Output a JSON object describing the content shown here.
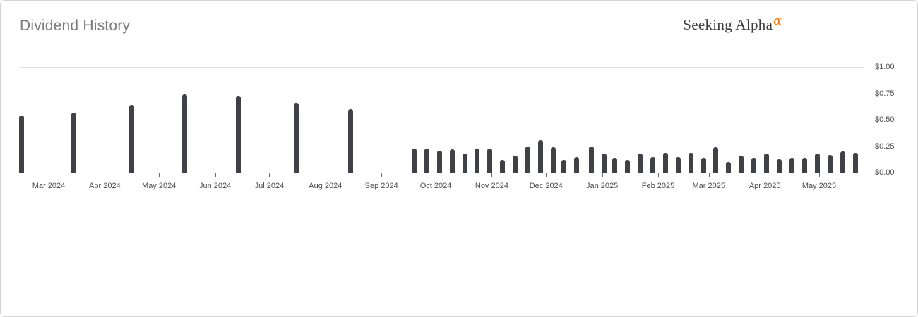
{
  "header": {
    "title": "Dividend History",
    "brand_name": "Seeking Alpha",
    "brand_alpha_symbol": "α"
  },
  "colors": {
    "bar": "#3f4146",
    "gridline": "#e4e4e4",
    "axis_text": "#4c4c4c",
    "title_text": "#7b7b7b",
    "brand_text": "#3d3d3d",
    "brand_alpha": "#f96a00",
    "card_border": "#d5d5d5"
  },
  "chart_data": {
    "type": "bar",
    "title": "Dividend History",
    "xlabel": "",
    "ylabel": "",
    "ylim": [
      0,
      1.0
    ],
    "grid": true,
    "legend": false,
    "x_domain": [
      "2024-02-14",
      "2025-05-26"
    ],
    "y_ticks": [
      {
        "label": "$1.00",
        "value": 1.0
      },
      {
        "label": "$0.75",
        "value": 0.75
      },
      {
        "label": "$0.50",
        "value": 0.5
      },
      {
        "label": "$0.25",
        "value": 0.25
      },
      {
        "label": "$0.00",
        "value": 0.0
      }
    ],
    "x_ticks": [
      {
        "label": "Mar 2024",
        "date": "2024-03-01"
      },
      {
        "label": "Apr 2024",
        "date": "2024-04-01"
      },
      {
        "label": "May 2024",
        "date": "2024-05-01"
      },
      {
        "label": "Jun 2024",
        "date": "2024-06-01"
      },
      {
        "label": "Jul 2024",
        "date": "2024-07-01"
      },
      {
        "label": "Aug 2024",
        "date": "2024-08-01"
      },
      {
        "label": "Sep 2024",
        "date": "2024-09-01"
      },
      {
        "label": "Oct 2024",
        "date": "2024-10-01"
      },
      {
        "label": "Nov 2024",
        "date": "2024-11-01"
      },
      {
        "label": "Dec 2024",
        "date": "2024-12-01"
      },
      {
        "label": "Jan 2025",
        "date": "2025-01-01"
      },
      {
        "label": "Feb 2025",
        "date": "2025-02-01"
      },
      {
        "label": "Mar 2025",
        "date": "2025-03-01"
      },
      {
        "label": "Apr 2025",
        "date": "2025-04-01"
      },
      {
        "label": "May 2025",
        "date": "2025-05-01"
      }
    ],
    "bars": [
      {
        "date": "2024-02-15",
        "amount": 0.54
      },
      {
        "date": "2024-03-15",
        "amount": 0.57
      },
      {
        "date": "2024-04-16",
        "amount": 0.64
      },
      {
        "date": "2024-05-15",
        "amount": 0.74
      },
      {
        "date": "2024-06-14",
        "amount": 0.73
      },
      {
        "date": "2024-07-16",
        "amount": 0.66
      },
      {
        "date": "2024-08-15",
        "amount": 0.6
      },
      {
        "date": "2024-09-19",
        "amount": 0.23
      },
      {
        "date": "2024-09-26",
        "amount": 0.23
      },
      {
        "date": "2024-10-03",
        "amount": 0.21
      },
      {
        "date": "2024-10-10",
        "amount": 0.22
      },
      {
        "date": "2024-10-17",
        "amount": 0.18
      },
      {
        "date": "2024-10-24",
        "amount": 0.23
      },
      {
        "date": "2024-10-31",
        "amount": 0.23
      },
      {
        "date": "2024-11-07",
        "amount": 0.12
      },
      {
        "date": "2024-11-14",
        "amount": 0.16
      },
      {
        "date": "2024-11-21",
        "amount": 0.25
      },
      {
        "date": "2024-11-28",
        "amount": 0.31
      },
      {
        "date": "2024-12-05",
        "amount": 0.24
      },
      {
        "date": "2024-12-11",
        "amount": 0.12
      },
      {
        "date": "2024-12-18",
        "amount": 0.15
      },
      {
        "date": "2024-12-26",
        "amount": 0.25
      },
      {
        "date": "2025-01-02",
        "amount": 0.18
      },
      {
        "date": "2025-01-08",
        "amount": 0.14
      },
      {
        "date": "2025-01-15",
        "amount": 0.12
      },
      {
        "date": "2025-01-22",
        "amount": 0.18
      },
      {
        "date": "2025-01-29",
        "amount": 0.15
      },
      {
        "date": "2025-02-05",
        "amount": 0.19
      },
      {
        "date": "2025-02-12",
        "amount": 0.15
      },
      {
        "date": "2025-02-19",
        "amount": 0.19
      },
      {
        "date": "2025-02-26",
        "amount": 0.14
      },
      {
        "date": "2025-03-05",
        "amount": 0.24
      },
      {
        "date": "2025-03-12",
        "amount": 0.1
      },
      {
        "date": "2025-03-19",
        "amount": 0.16
      },
      {
        "date": "2025-03-26",
        "amount": 0.14
      },
      {
        "date": "2025-04-02",
        "amount": 0.18
      },
      {
        "date": "2025-04-09",
        "amount": 0.13
      },
      {
        "date": "2025-04-16",
        "amount": 0.14
      },
      {
        "date": "2025-04-23",
        "amount": 0.14
      },
      {
        "date": "2025-04-30",
        "amount": 0.18
      },
      {
        "date": "2025-05-07",
        "amount": 0.17
      },
      {
        "date": "2025-05-14",
        "amount": 0.2
      },
      {
        "date": "2025-05-21",
        "amount": 0.19
      }
    ]
  }
}
